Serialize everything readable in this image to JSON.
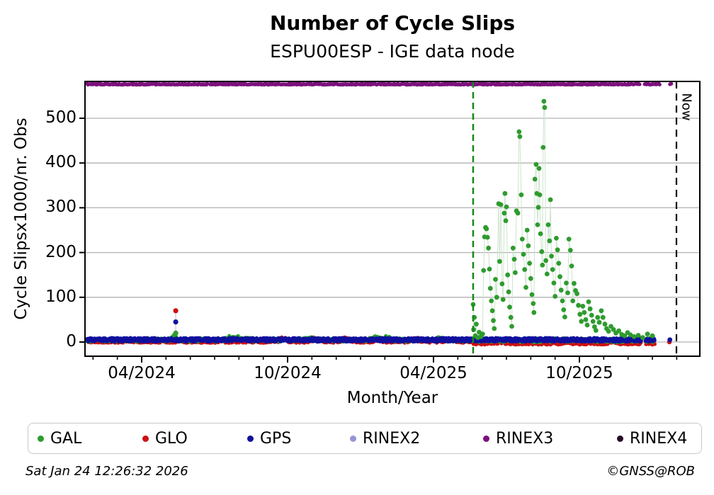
{
  "page": {
    "title": "Number of Cycle Slips",
    "subtitle": "ESPU00ESP - IGE data node"
  },
  "footer": {
    "timestamp": "Sat Jan 24 12:26:32 2026",
    "credit": "©GNSS@ROB"
  },
  "chart_data": {
    "type": "scatter",
    "title": "Number of Cycle Slips",
    "subtitle": "ESPU00ESP - IGE data node",
    "xlabel": "Month/Year",
    "ylabel": "Cycle Slipsx1000/nr. Obs",
    "x_unit": "months_since_2024_04",
    "xlim": [
      -2.33,
      22.95
    ],
    "ylim": [
      -31.6,
      582
    ],
    "grid": "horizontal-gray",
    "x_major_ticks": [
      {
        "t": 0,
        "label": "04/2024"
      },
      {
        "t": 6,
        "label": "10/2024"
      },
      {
        "t": 12,
        "label": "04/2025"
      },
      {
        "t": 18,
        "label": "10/2025"
      }
    ],
    "x_minor_tick_step_months": 1,
    "y_ticks": [
      0,
      100,
      200,
      300,
      400,
      500
    ],
    "legend": [
      {
        "name": "GAL",
        "color": "#2e9b2e"
      },
      {
        "name": "GLO",
        "color": "#cc1111"
      },
      {
        "name": "GPS",
        "color": "#10109e"
      },
      {
        "name": "RINEX2",
        "color": "#9595d6"
      },
      {
        "name": "RINEX3",
        "color": "#7c0f7c"
      },
      {
        "name": "RINEX4",
        "color": "#260b26"
      }
    ],
    "annotations": {
      "event_line": {
        "t": 13.63,
        "color": "#178717",
        "style": "dashed",
        "approx_date": "late May 2025"
      },
      "now_line": {
        "t": 21.99,
        "color": "#000000",
        "style": "dashed",
        "label": "Now"
      }
    },
    "rinex3_band": {
      "value": 576,
      "marker_r": 2.5,
      "step": 0.02,
      "segments": [
        [
          -2.25,
          2.72
        ],
        [
          2.82,
          20.48
        ],
        [
          20.68,
          21.02
        ],
        [
          21.08,
          21.3
        ],
        [
          21.72,
          21.78
        ]
      ]
    },
    "spike_event": {
      "t": 1.4,
      "approx_date": "mid May 2024",
      "points": [
        {
          "series": "GLO",
          "v": 70
        },
        {
          "series": "GPS",
          "v": 45
        },
        {
          "series": "GAL",
          "v": 20
        }
      ]
    },
    "baseline_bands": [
      {
        "series": "GLO",
        "step": 0.018,
        "r": 2.6,
        "seed": 11,
        "segments": [
          [
            -2.25,
            20.55
          ],
          [
            20.72,
            21.1
          ]
        ],
        "dots": [
          [
            21.7,
            0
          ]
        ],
        "phases": [
          {
            "t0": -2.25,
            "t1": 13.63,
            "center": 2,
            "spread": 4
          },
          {
            "t0": 13.63,
            "t1": 22.0,
            "center": -2.5,
            "spread": 3.5
          }
        ],
        "humps": [
          {
            "t": 5.8,
            "h": 6,
            "w": 0.15
          },
          {
            "t": 7.1,
            "h": 7,
            "w": 0.12
          },
          {
            "t": 8.4,
            "h": 6,
            "w": 0.15
          },
          {
            "t": 9.7,
            "h": 7,
            "w": 0.12
          },
          {
            "t": 11.3,
            "h": 6,
            "w": 0.15
          },
          {
            "t": 12.7,
            "h": 6,
            "w": 0.12
          },
          {
            "t": 14.8,
            "h": 5,
            "w": 0.1
          },
          {
            "t": 17.5,
            "h": 5,
            "w": 0.12
          },
          {
            "t": 19.3,
            "h": 6,
            "w": 0.1
          }
        ]
      },
      {
        "series": "GAL",
        "step": 0.028,
        "r": 2.6,
        "seed": 22,
        "segments": [
          [
            -2.25,
            20.55
          ],
          [
            20.72,
            21.05
          ]
        ],
        "dots": [],
        "phases": [
          {
            "t0": -2.25,
            "t1": 13.63,
            "center": 4.5,
            "spread": 4
          },
          {
            "t0": 13.63,
            "t1": 22.0,
            "center": 4,
            "spread": 5
          }
        ],
        "humps": [
          {
            "t": 1.35,
            "h": 11,
            "w": 0.08
          },
          {
            "t": 3.6,
            "h": 8,
            "w": 0.12
          },
          {
            "t": 3.95,
            "h": 9,
            "w": 0.1
          },
          {
            "t": 4.3,
            "h": 6,
            "w": 0.1
          },
          {
            "t": 6.9,
            "h": 5,
            "w": 0.2
          },
          {
            "t": 9.6,
            "h": 8,
            "w": 0.15
          },
          {
            "t": 10.1,
            "h": 6,
            "w": 0.12
          },
          {
            "t": 12.3,
            "h": 4,
            "w": 0.15
          }
        ]
      },
      {
        "series": "GPS",
        "step": 0.016,
        "r": 2.8,
        "seed": 33,
        "segments": [
          [
            -2.25,
            20.55
          ],
          [
            20.72,
            21.1
          ]
        ],
        "dots": [
          [
            21.72,
            5
          ]
        ],
        "phases": [
          {
            "t0": -2.25,
            "t1": 22.0,
            "center": 5,
            "spread": 4
          }
        ],
        "humps": []
      }
    ],
    "gal_outbreak_points": [
      [
        13.63,
        84
      ],
      [
        13.65,
        28
      ],
      [
        13.68,
        55
      ],
      [
        13.72,
        14
      ],
      [
        13.76,
        40
      ],
      [
        13.82,
        10
      ],
      [
        13.88,
        22
      ],
      [
        13.95,
        12
      ],
      [
        14.02,
        18
      ],
      [
        14.06,
        160
      ],
      [
        14.1,
        235
      ],
      [
        14.14,
        256
      ],
      [
        14.18,
        253
      ],
      [
        14.22,
        234
      ],
      [
        14.26,
        210
      ],
      [
        14.3,
        163
      ],
      [
        14.34,
        120
      ],
      [
        14.38,
        92
      ],
      [
        14.42,
        70
      ],
      [
        14.46,
        48
      ],
      [
        14.5,
        30
      ],
      [
        14.55,
        140
      ],
      [
        14.6,
        100
      ],
      [
        14.68,
        309
      ],
      [
        14.72,
        180
      ],
      [
        14.77,
        307
      ],
      [
        14.82,
        130
      ],
      [
        14.86,
        95
      ],
      [
        14.91,
        288
      ],
      [
        14.94,
        332
      ],
      [
        14.97,
        271
      ],
      [
        15.0,
        302
      ],
      [
        15.05,
        150
      ],
      [
        15.09,
        112
      ],
      [
        15.13,
        78
      ],
      [
        15.18,
        55
      ],
      [
        15.22,
        35
      ],
      [
        15.27,
        210
      ],
      [
        15.32,
        185
      ],
      [
        15.36,
        155
      ],
      [
        15.41,
        293
      ],
      [
        15.47,
        288
      ],
      [
        15.52,
        470
      ],
      [
        15.55,
        459
      ],
      [
        15.61,
        329
      ],
      [
        15.65,
        230
      ],
      [
        15.7,
        196
      ],
      [
        15.75,
        162
      ],
      [
        15.8,
        122
      ],
      [
        15.85,
        250
      ],
      [
        15.9,
        215
      ],
      [
        15.95,
        176
      ],
      [
        16.0,
        142
      ],
      [
        16.05,
        106
      ],
      [
        16.1,
        86
      ],
      [
        16.13,
        66
      ],
      [
        16.17,
        364
      ],
      [
        16.22,
        397
      ],
      [
        16.25,
        332
      ],
      [
        16.28,
        262
      ],
      [
        16.31,
        301
      ],
      [
        16.34,
        388
      ],
      [
        16.37,
        329
      ],
      [
        16.4,
        242
      ],
      [
        16.45,
        202
      ],
      [
        16.48,
        172
      ],
      [
        16.51,
        435
      ],
      [
        16.54,
        538
      ],
      [
        16.57,
        524
      ],
      [
        16.62,
        182
      ],
      [
        16.67,
        152
      ],
      [
        16.72,
        262
      ],
      [
        16.77,
        226
      ],
      [
        16.81,
        318
      ],
      [
        16.85,
        192
      ],
      [
        16.9,
        162
      ],
      [
        16.95,
        132
      ],
      [
        17.0,
        102
      ],
      [
        17.05,
        232
      ],
      [
        17.1,
        206
      ],
      [
        17.15,
        176
      ],
      [
        17.2,
        146
      ],
      [
        17.25,
        116
      ],
      [
        17.3,
        92
      ],
      [
        17.35,
        72
      ],
      [
        17.4,
        56
      ],
      [
        17.46,
        132
      ],
      [
        17.52,
        110
      ],
      [
        17.57,
        230
      ],
      [
        17.63,
        205
      ],
      [
        17.68,
        170
      ],
      [
        17.73,
        92
      ],
      [
        17.78,
        131
      ],
      [
        17.84,
        115
      ],
      [
        17.9,
        108
      ],
      [
        17.96,
        82
      ],
      [
        18.02,
        62
      ],
      [
        18.08,
        46
      ],
      [
        18.14,
        80
      ],
      [
        18.2,
        66
      ],
      [
        18.26,
        50
      ],
      [
        18.32,
        38
      ],
      [
        18.38,
        90
      ],
      [
        18.44,
        74
      ],
      [
        18.5,
        60
      ],
      [
        18.56,
        46
      ],
      [
        18.62,
        34
      ],
      [
        18.68,
        26
      ],
      [
        18.75,
        55
      ],
      [
        18.82,
        44
      ],
      [
        18.9,
        70
      ],
      [
        18.97,
        55
      ],
      [
        19.05,
        40
      ],
      [
        19.12,
        30
      ],
      [
        19.2,
        24
      ],
      [
        19.3,
        35
      ],
      [
        19.4,
        28
      ],
      [
        19.5,
        20
      ],
      [
        19.62,
        25
      ],
      [
        19.74,
        17
      ],
      [
        19.86,
        14
      ],
      [
        19.98,
        21
      ],
      [
        20.1,
        16
      ],
      [
        20.25,
        12
      ],
      [
        20.42,
        15
      ],
      [
        20.6,
        10
      ],
      [
        20.8,
        18
      ],
      [
        21.0,
        14
      ]
    ]
  }
}
